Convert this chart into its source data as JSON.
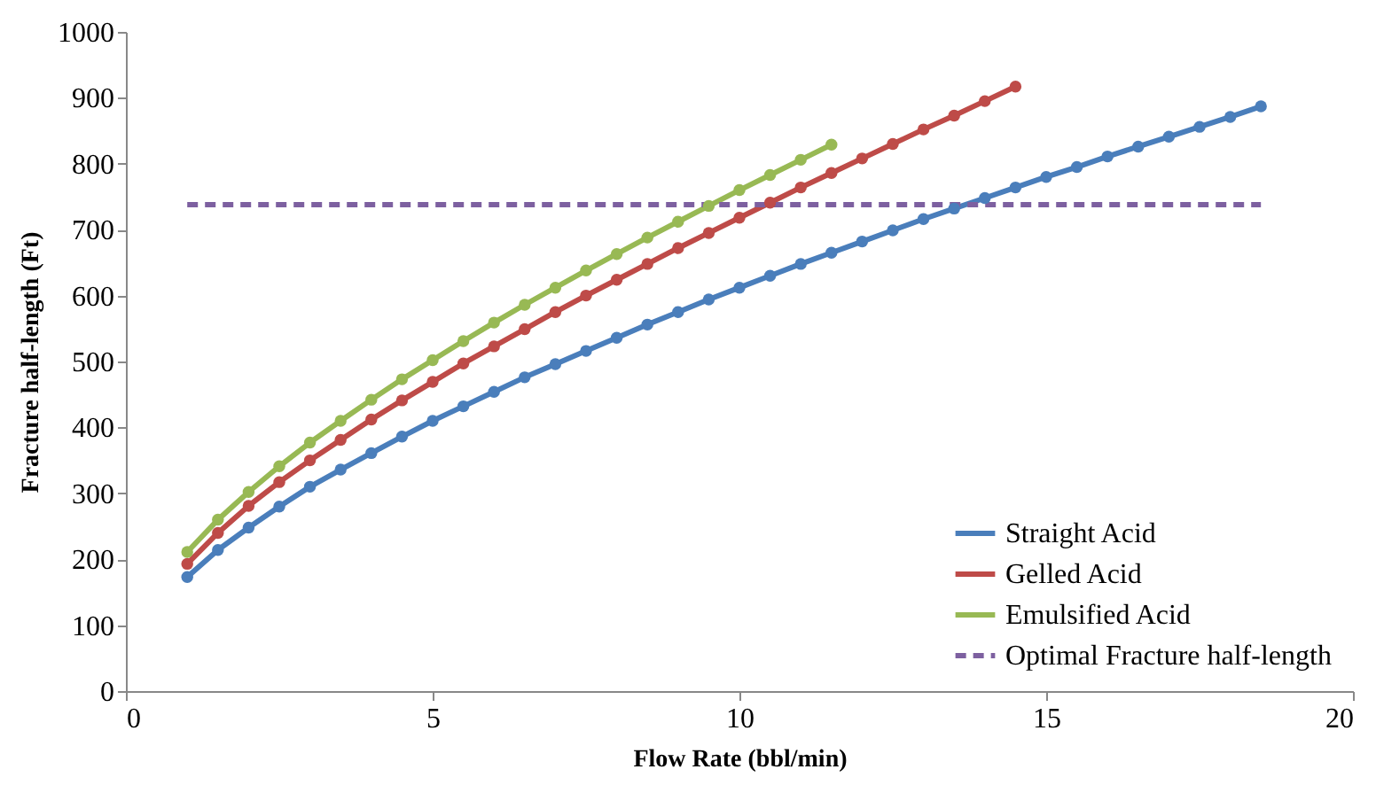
{
  "chart_data": {
    "type": "line",
    "xlabel": "Flow Rate (bbl/min)",
    "ylabel": "Fracture half-length (Ft)",
    "xlim": [
      0,
      20
    ],
    "xticks": [
      0,
      5,
      10,
      15,
      20
    ],
    "ylim": [
      0,
      1000
    ],
    "yticks": [
      0,
      100,
      200,
      300,
      400,
      500,
      600,
      700,
      800,
      900,
      1000
    ],
    "grid": false,
    "legend": "bottom right",
    "marker": "circle",
    "series": [
      {
        "name": "Straight Acid",
        "color": "#4a7ebb",
        "line_style": "solid",
        "x": [
          1,
          1.5,
          2,
          2.5,
          3,
          3.5,
          4,
          4.5,
          5,
          5.5,
          6,
          6.5,
          7,
          7.5,
          8,
          8.5,
          9,
          9.5,
          10,
          10.5,
          11,
          11.5,
          12,
          12.5,
          13,
          13.5,
          14,
          14.5,
          15,
          15.5,
          16,
          16.5,
          17,
          17.5,
          18,
          18.5
        ],
        "values": [
          173,
          214,
          248,
          280,
          310,
          336,
          361,
          386,
          410,
          432,
          454,
          476,
          496,
          516,
          536,
          556,
          575,
          594,
          612,
          630,
          648,
          665,
          682,
          699,
          716,
          732,
          748,
          764,
          780,
          795,
          811,
          826,
          841,
          856,
          871,
          887
        ]
      },
      {
        "name": "Gelled Acid",
        "color": "#be4b48",
        "line_style": "solid",
        "x": [
          1,
          1.5,
          2,
          2.5,
          3,
          3.5,
          4,
          4.5,
          5,
          5.5,
          6,
          6.5,
          7,
          7.5,
          8,
          8.5,
          9,
          9.5,
          10,
          10.5,
          11,
          11.5,
          12,
          12.5,
          13,
          13.5,
          14,
          14.5
        ],
        "values": [
          193,
          240,
          281,
          317,
          350,
          381,
          412,
          441,
          469,
          497,
          523,
          549,
          575,
          600,
          624,
          648,
          672,
          695,
          718,
          741,
          764,
          786,
          808,
          830,
          852,
          873,
          895,
          917
        ]
      },
      {
        "name": "Emulsified Acid",
        "color": "#98b954",
        "line_style": "solid",
        "x": [
          1,
          1.5,
          2,
          2.5,
          3,
          3.5,
          4,
          4.5,
          5,
          5.5,
          6,
          6.5,
          7,
          7.5,
          8,
          8.5,
          9,
          9.5,
          10,
          10.5,
          11,
          11.5
        ],
        "values": [
          211,
          260,
          302,
          341,
          377,
          410,
          442,
          473,
          502,
          531,
          559,
          586,
          612,
          638,
          663,
          688,
          712,
          736,
          760,
          783,
          806,
          829
        ]
      },
      {
        "name": "Optimal Fracture half-length",
        "color": "#7d60a0",
        "line_style": "dashed",
        "marker": "none",
        "x": [
          1,
          18.5
        ],
        "values": [
          738,
          738
        ]
      }
    ]
  }
}
